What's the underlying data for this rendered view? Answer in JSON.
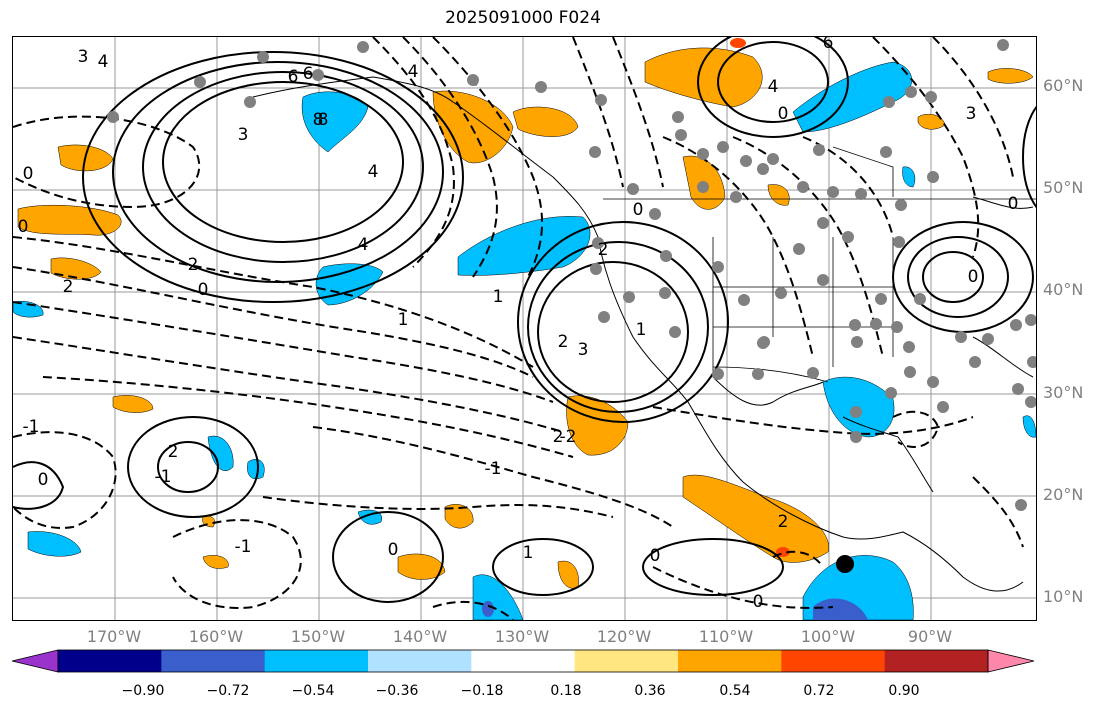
{
  "title": "2025091000 F024",
  "latitude_labels": [
    "60°N",
    "50°N",
    "40°N",
    "30°N",
    "20°N",
    "10°N"
  ],
  "longitude_labels": [
    "170°W",
    "160°W",
    "150°W",
    "140°W",
    "130°W",
    "120°W",
    "110°W",
    "100°W",
    "90°W"
  ],
  "colorbar": {
    "ticks": [
      "−0.90",
      "−0.72",
      "−0.54",
      "−0.36",
      "−0.18",
      "0.18",
      "0.36",
      "0.54",
      "0.72",
      "0.90"
    ],
    "colors": [
      "#9933cc",
      "#00008b",
      "#3a5fcd",
      "#00bfff",
      "#b0e2ff",
      "#ffffff",
      "#ffe680",
      "#ffa500",
      "#ff4500",
      "#b22222",
      "#ff88aa"
    ]
  },
  "contour_labels": [
    "6",
    "4",
    "3",
    "2",
    "0",
    "8",
    "6",
    "4",
    "1",
    "2",
    "3",
    "0",
    "2",
    "-1",
    "0",
    "2",
    "3",
    "4",
    "2",
    "-1",
    "-2",
    "-1",
    "0",
    "1",
    "2",
    "1",
    "0",
    "0",
    "2",
    "4",
    "0",
    "0",
    "3",
    "8",
    "6",
    "4",
    "0",
    "1",
    "0",
    "-1",
    "0"
  ],
  "map_colors": {
    "positive_fill": "#ffa500",
    "negative_fill": "#00bfff",
    "strong_negative_fill": "#3a5fcd",
    "strong_positive_fill": "#ff4500",
    "station_dot": "#808080",
    "marker": "#000000"
  }
}
